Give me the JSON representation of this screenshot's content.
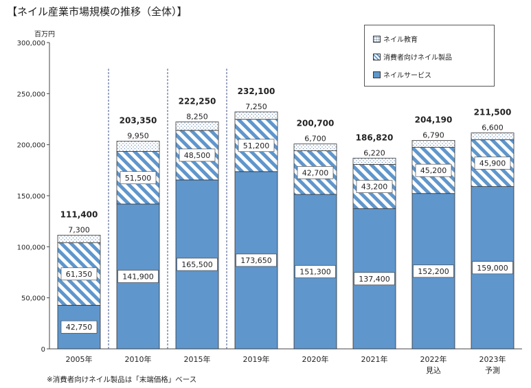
{
  "title": "【ネイル産業市場規模の推移（全体）】",
  "y_unit": "百万円",
  "footnote": "※消費者向けネイル製品は「末端価格」ベース",
  "legend": [
    {
      "label": "ネイル教育",
      "series": "education"
    },
    {
      "label": "消費者向けネイル製品",
      "series": "products"
    },
    {
      "label": "ネイルサービス",
      "series": "services"
    }
  ],
  "colors": {
    "services": "#5f96cc",
    "stripe": "#5f96cc",
    "dots": "#6b8fb5",
    "divider": "#3c4f8a"
  },
  "chart_data": {
    "type": "bar",
    "stacked": true,
    "categories": [
      "2005年",
      "2010年",
      "2015年",
      "2019年",
      "2020年",
      "2021年",
      "2022年",
      "2023年"
    ],
    "category_sublabels": [
      "",
      "",
      "",
      "",
      "",
      "",
      "見込",
      "予測"
    ],
    "series": [
      {
        "name": "ネイルサービス",
        "key": "services",
        "values": [
          42750,
          141900,
          165500,
          173650,
          151300,
          137400,
          152200,
          159000
        ]
      },
      {
        "name": "消費者向けネイル製品",
        "key": "products",
        "values": [
          61350,
          51500,
          48500,
          51200,
          42700,
          43200,
          45200,
          45900
        ]
      },
      {
        "name": "ネイル教育",
        "key": "education",
        "values": [
          7300,
          9950,
          8250,
          7250,
          6700,
          6220,
          6790,
          6600
        ]
      }
    ],
    "totals": [
      111400,
      203350,
      222250,
      232100,
      200700,
      186820,
      204190,
      211500
    ],
    "value_labels": {
      "services": [
        "42,750",
        "141,900",
        "165,500",
        "173,650",
        "151,300",
        "137,400",
        "152,200",
        "159,000"
      ],
      "products": [
        "61,350",
        "51,500",
        "48,500",
        "51,200",
        "42,700",
        "43,200",
        "45,200",
        "45,900"
      ],
      "education": [
        "7,300",
        "9,950",
        "8,250",
        "7,250",
        "6,700",
        "6,220",
        "6,790",
        "6,600"
      ],
      "totals": [
        "111,400",
        "203,350",
        "222,250",
        "232,100",
        "200,700",
        "186,820",
        "204,190",
        "211,500"
      ]
    },
    "ylim": [
      0,
      300000
    ],
    "yticks": [
      0,
      50000,
      100000,
      150000,
      200000,
      250000,
      300000
    ],
    "ytick_labels": [
      "0",
      "50,000",
      "100,000",
      "150,000",
      "200,000",
      "250,000",
      "300,000"
    ],
    "legend_position": "top-right",
    "grid": false
  }
}
